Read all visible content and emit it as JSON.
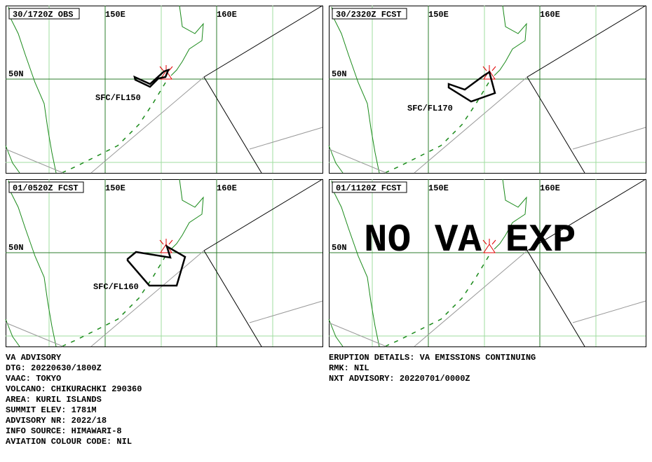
{
  "panels": [
    {
      "label": "30/1720Z OBS",
      "lon_west": "150E",
      "lon_east": "160E",
      "lat": "50N",
      "level": "SFC/FL150"
    },
    {
      "label": "30/2320Z FCST",
      "lon_west": "150E",
      "lon_east": "160E",
      "lat": "50N",
      "level": "SFC/FL170"
    },
    {
      "label": "01/0520Z FCST",
      "lon_west": "150E",
      "lon_east": "160E",
      "lat": "50N",
      "level": "SFC/FL160"
    },
    {
      "label": "01/1120Z FCST",
      "lon_west": "150E",
      "lon_east": "160E",
      "lat": "50N",
      "overlay": "NO VA EXP"
    }
  ],
  "advisory": {
    "left": [
      "VA ADVISORY",
      "DTG: 20220630/1800Z",
      "VAAC: TOKYO",
      "VOLCANO: CHIKURACHKI 290360",
      "AREA: KURIL ISLANDS",
      "SUMMIT ELEV: 1781M",
      "ADVISORY NR: 2022/18",
      "INFO SOURCE: HIMAWARI-8",
      "AVIATION COLOUR CODE: NIL"
    ],
    "right": [
      "ERUPTION DETAILS: VA EMISSIONS CONTINUING",
      "RMK: NIL",
      "NXT ADVISORY: 20220701/0000Z"
    ]
  }
}
